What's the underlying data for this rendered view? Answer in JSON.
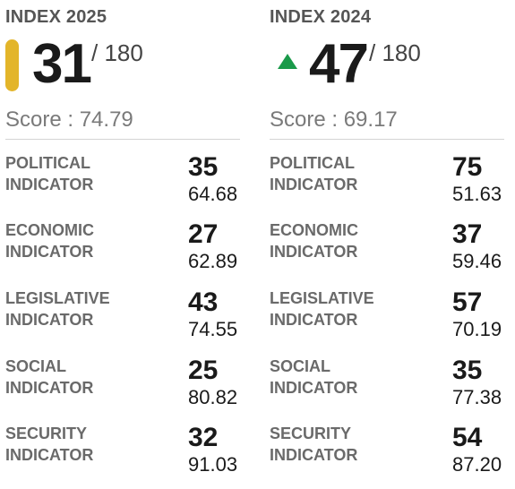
{
  "colors": {
    "marker_2025": "#e3b52a",
    "arrow_up": "#1a9a4a",
    "divider": "#d4d4d4"
  },
  "columns": [
    {
      "title": "INDEX 2025",
      "marker": "yellow-bar",
      "rank": "31",
      "rank_total": "/ 180",
      "score_text": "Score : 74.79",
      "indicators": [
        {
          "label_line1": "POLITICAL",
          "label_line2": "INDICATOR",
          "rank": "35",
          "score": "64.68"
        },
        {
          "label_line1": "ECONOMIC",
          "label_line2": "INDICATOR",
          "rank": "27",
          "score": "62.89"
        },
        {
          "label_line1": "LEGISLATIVE",
          "label_line2": "INDICATOR",
          "rank": "43",
          "score": "74.55"
        },
        {
          "label_line1": "SOCIAL",
          "label_line2": "INDICATOR",
          "rank": "25",
          "score": "80.82"
        },
        {
          "label_line1": "SECURITY",
          "label_line2": "INDICATOR",
          "rank": "32",
          "score": "91.03"
        }
      ]
    },
    {
      "title": "INDEX 2024",
      "marker": "arrow-up",
      "rank": "47",
      "rank_total": "/ 180",
      "score_text": "Score : 69.17",
      "indicators": [
        {
          "label_line1": "POLITICAL",
          "label_line2": "INDICATOR",
          "rank": "75",
          "score": "51.63"
        },
        {
          "label_line1": "ECONOMIC",
          "label_line2": "INDICATOR",
          "rank": "37",
          "score": "59.46"
        },
        {
          "label_line1": "LEGISLATIVE",
          "label_line2": "INDICATOR",
          "rank": "57",
          "score": "70.19"
        },
        {
          "label_line1": "SOCIAL",
          "label_line2": "INDICATOR",
          "rank": "35",
          "score": "77.38"
        },
        {
          "label_line1": "SECURITY",
          "label_line2": "INDICATOR",
          "rank": "54",
          "score": "87.20"
        }
      ]
    }
  ]
}
